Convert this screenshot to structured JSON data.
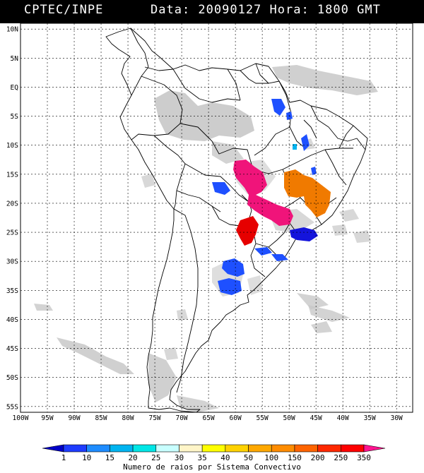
{
  "header": {
    "source": "CPTEC/INPE",
    "datetime": "Data: 20090127 Hora: 1800 GMT"
  },
  "map": {
    "lat_labels": [
      "10N",
      "5N",
      "EQ",
      "5S",
      "10S",
      "15S",
      "20S",
      "25S",
      "30S",
      "35S",
      "40S",
      "45S",
      "50S",
      "55S"
    ],
    "lon_labels": [
      "100W",
      "95W",
      "90W",
      "85W",
      "80W",
      "75W",
      "70W",
      "65W",
      "60W",
      "55W",
      "50W",
      "45W",
      "40W",
      "35W",
      "30W"
    ],
    "lat_range": [
      11,
      -56
    ],
    "lon_range": [
      -100,
      -27
    ],
    "colors": {
      "land_fill": "#ffffff",
      "border": "#000000",
      "grid": "#000000",
      "clouds": "#c8c8c8"
    }
  },
  "convective_systems": [
    {
      "name": "Magenta cluster central Brazil",
      "level": "350",
      "color": "#f0147a"
    },
    {
      "name": "Red cluster Paraguay",
      "level": "250",
      "color": "#e60000"
    },
    {
      "name": "Orange cluster Minas Gerais",
      "level": "150",
      "color": "#f07a00"
    },
    {
      "name": "Blue clusters south",
      "level": "1",
      "color": "#1428e6"
    }
  ],
  "colorbar": {
    "ticks": [
      "1",
      "10",
      "15",
      "20",
      "25",
      "30",
      "35",
      "40",
      "50",
      "100",
      "150",
      "200",
      "250",
      "350"
    ],
    "colors": [
      "#0000c8",
      "#1e3cff",
      "#1e8cff",
      "#00b4f0",
      "#00e6e6",
      "#c8ffff",
      "#fff5c8",
      "#ffff00",
      "#ffd200",
      "#ffa800",
      "#ff8c00",
      "#ff6400",
      "#ff2800",
      "#ff0000",
      "#ff1490"
    ],
    "caption": "Numero de raios por Sistema Convectivo"
  }
}
